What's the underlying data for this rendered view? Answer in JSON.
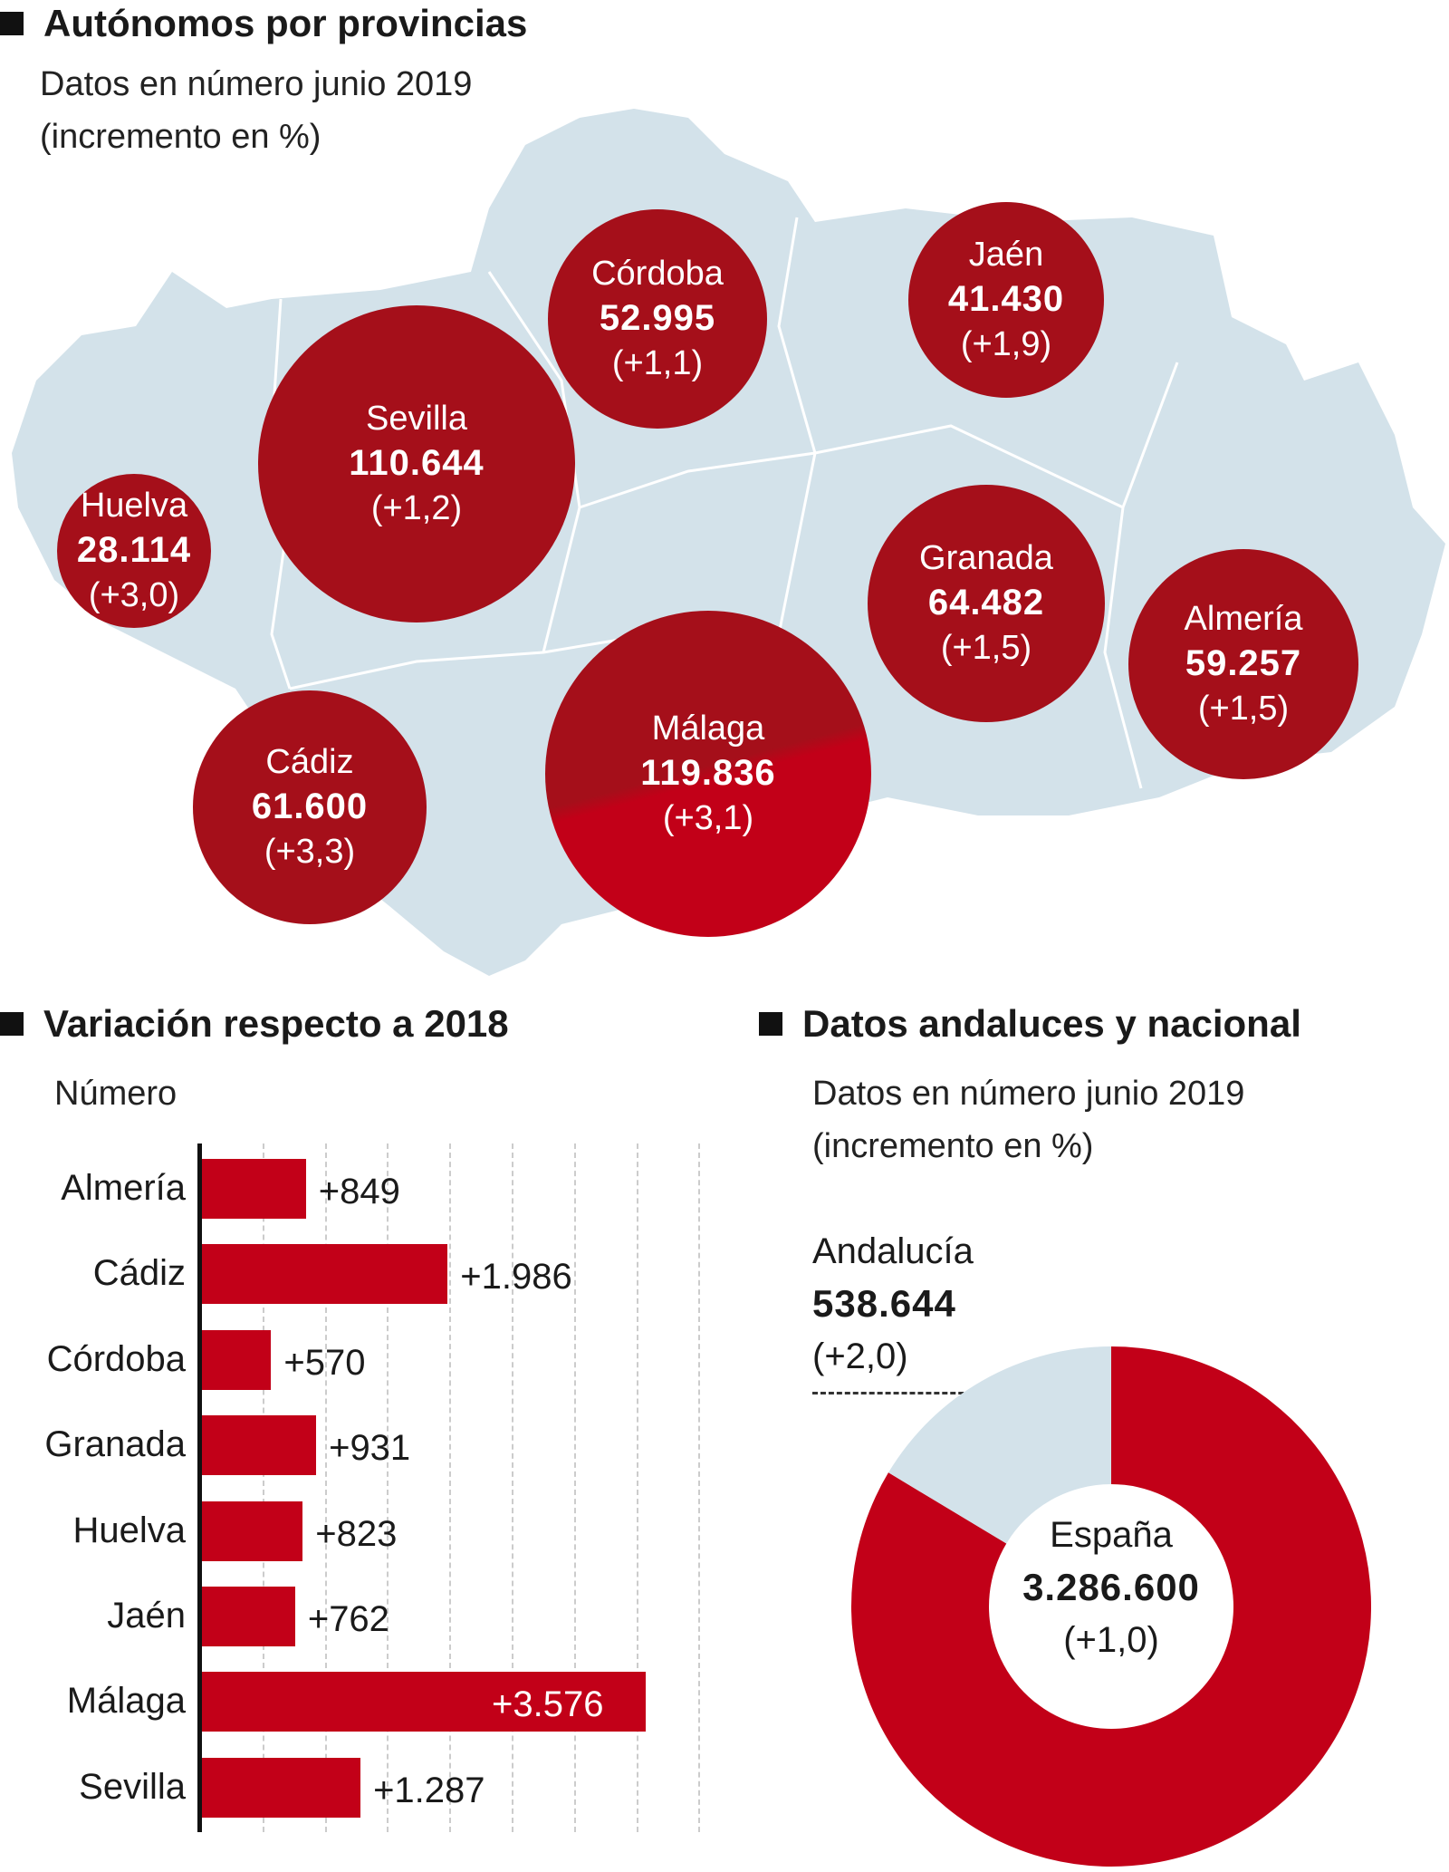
{
  "map_section": {
    "title": "Autónomos por provincias",
    "subtitle_1": "Datos en número junio 2019",
    "subtitle_2": "(incremento en %)",
    "provinces": [
      {
        "name": "Córdoba",
        "value": "52.995",
        "change": "(+1,1)"
      },
      {
        "name": "Jaén",
        "value": "41.430",
        "change": "(+1,9)"
      },
      {
        "name": "Sevilla",
        "value": "110.644",
        "change": "(+1,2)"
      },
      {
        "name": "Huelva",
        "value": "28.114",
        "change": "(+3,0)"
      },
      {
        "name": "Granada",
        "value": "64.482",
        "change": "(+1,5)"
      },
      {
        "name": "Almería",
        "value": "59.257",
        "change": "(+1,5)"
      },
      {
        "name": "Cádiz",
        "value": "61.600",
        "change": "(+3,3)"
      },
      {
        "name": "Málaga",
        "value": "119.836",
        "change": "(+3,1)"
      }
    ],
    "colors": {
      "bubble": "#a50f1a",
      "bubble_highlight": "#c20018",
      "land": "#d3e2ea"
    }
  },
  "bar_section": {
    "title": "Variación respecto a 2018",
    "subtitle": "Número"
  },
  "donut_section": {
    "title": "Datos andaluces y nacional",
    "subtitle_1": "Datos en número junio 2019",
    "subtitle_2": "(incremento en %)",
    "andalucia": {
      "name": "Andalucía",
      "value": "538.644",
      "change": "(+2,0)"
    },
    "espana": {
      "name": "España",
      "value": "3.286.600",
      "change": "(+1,0)"
    }
  },
  "chart_data": [
    {
      "type": "bar",
      "orientation": "horizontal",
      "title": "Variación respecto a 2018",
      "subtitle": "Número",
      "categories": [
        "Almería",
        "Cádiz",
        "Córdoba",
        "Granada",
        "Huelva",
        "Jaén",
        "Málaga",
        "Sevilla"
      ],
      "values": [
        849,
        1986,
        570,
        931,
        823,
        762,
        3576,
        1287
      ],
      "labels": [
        "+849",
        "+1.986",
        "+570",
        "+931",
        "+823",
        "+762",
        "+3.576",
        "+1.287"
      ],
      "xlim": [
        0,
        4000
      ],
      "grid": true,
      "color": "#c20018"
    },
    {
      "type": "pie",
      "donut": true,
      "title": "Datos andaluces y nacional",
      "slices": [
        {
          "name": "Andalucía",
          "value": 538644,
          "color": "#d3e2ea"
        },
        {
          "name": "España",
          "value": 3286600,
          "color": "#c20018"
        }
      ]
    }
  ]
}
